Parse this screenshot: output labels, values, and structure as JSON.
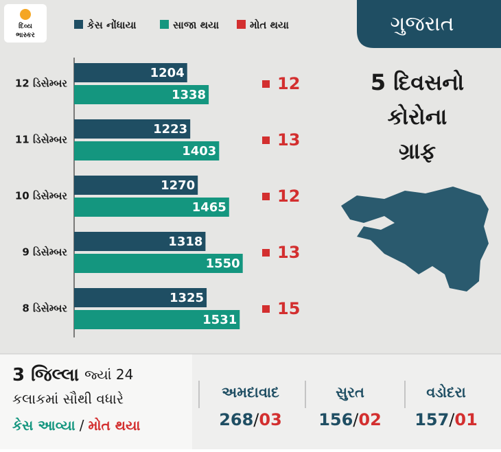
{
  "brand": [
    "દિવ્ય",
    "ભાસ્કર"
  ],
  "chart_data": {
    "type": "bar",
    "orientation": "horizontal",
    "categories": [
      "12 ડિસેમ્બર",
      "11 ડિસેમ્બર",
      "10 ડિસેમ્બર",
      "9 ડિસેમ્બર",
      "8 ડિસેમ્બર"
    ],
    "xlim": [
      500,
      1650
    ],
    "series": [
      {
        "name": "કેસ નોંધાયા",
        "color": "#1f4e63",
        "values": [
          1204,
          1223,
          1270,
          1318,
          1325
        ]
      },
      {
        "name": "સાજા થયા",
        "color": "#14967f",
        "values": [
          1338,
          1403,
          1465,
          1550,
          1531
        ]
      },
      {
        "name": "મોત થયા",
        "color": "#d32f2f",
        "values": [
          12,
          13,
          12,
          13,
          15
        ]
      }
    ]
  },
  "side": {
    "state": "ગુજરાત",
    "title": [
      "5 દિવસનો",
      "કોરોના",
      "ગ્રાફ"
    ]
  },
  "summary": {
    "title_bold": "3 જિલ્લા",
    "title_rest": "જ્યાં 24",
    "title_line2": "કલાકમાં સૌથી વધારે",
    "legend": [
      "કેસ આવ્યા",
      "/",
      "મોત થયા"
    ],
    "separator": "/",
    "cities": [
      {
        "name": "અમદાવાદ",
        "cases": "268",
        "deaths": "03"
      },
      {
        "name": "સુરત",
        "cases": "156",
        "deaths": "02"
      },
      {
        "name": "વડોદરા",
        "cases": "157",
        "deaths": "01"
      }
    ]
  }
}
